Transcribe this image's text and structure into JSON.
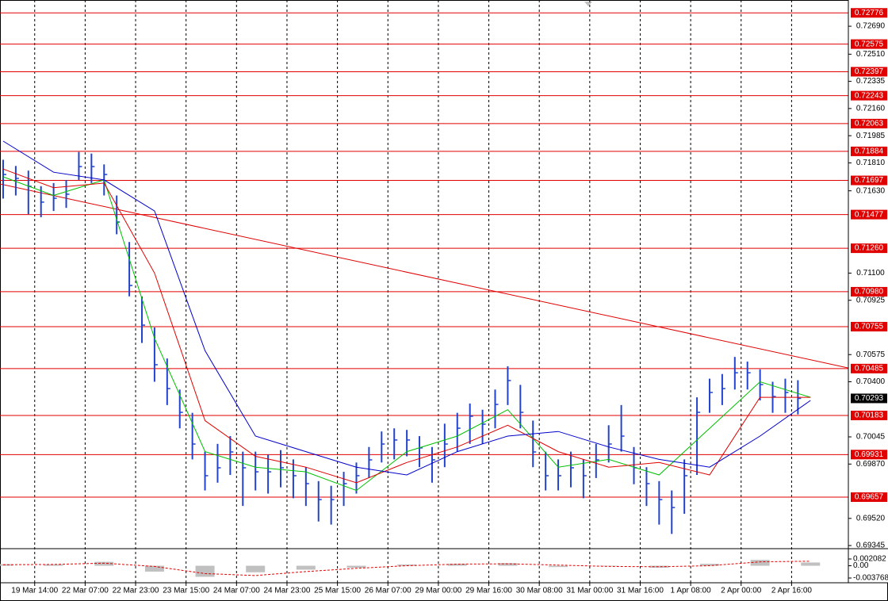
{
  "chart_data": [
    {
      "type": "ohlc",
      "x": [
        0,
        4,
        8,
        12,
        16,
        20,
        24,
        28,
        32,
        36,
        40,
        44,
        48,
        52,
        56,
        60,
        64,
        68,
        72,
        76,
        80,
        84,
        88,
        92,
        96,
        100,
        104,
        108,
        112,
        116,
        120,
        124,
        128,
        132,
        136,
        140,
        144,
        148,
        152,
        156,
        160,
        164,
        168,
        172,
        176,
        180,
        184,
        188,
        192,
        196,
        200,
        204,
        208,
        212,
        216,
        220,
        224,
        228,
        232,
        236,
        240,
        244,
        248,
        252
      ],
      "high": [
        0.7183,
        0.7179,
        0.7176,
        0.7166,
        0.7168,
        0.717,
        0.7188,
        0.7187,
        0.718,
        0.716,
        0.713,
        0.7095,
        0.7075,
        0.7055,
        0.7035,
        0.702,
        0.6995,
        0.7,
        0.7005,
        0.6995,
        0.6995,
        0.6993,
        0.6996,
        0.699,
        0.6985,
        0.6976,
        0.6973,
        0.6982,
        0.6988,
        0.6998,
        0.7008,
        0.701,
        0.7009,
        0.7005,
        0.6998,
        0.7013,
        0.702,
        0.7026,
        0.7022,
        0.7035,
        0.705,
        0.7038,
        0.7015,
        0.6995,
        0.699,
        0.6995,
        0.699,
        0.7,
        0.7012,
        0.7025,
        0.6998,
        0.6985,
        0.6976,
        0.697,
        0.699,
        0.703,
        0.7042,
        0.7045,
        0.7056,
        0.7053,
        0.7048,
        0.704,
        0.7042,
        0.7041
      ],
      "low": [
        0.7158,
        0.716,
        0.7148,
        0.7146,
        0.715,
        0.7152,
        0.717,
        0.7168,
        0.716,
        0.7135,
        0.7095,
        0.7065,
        0.704,
        0.7025,
        0.701,
        0.699,
        0.697,
        0.6975,
        0.698,
        0.696,
        0.697,
        0.6968,
        0.6972,
        0.6965,
        0.696,
        0.695,
        0.6948,
        0.696,
        0.6968,
        0.6978,
        0.6988,
        0.699,
        0.6992,
        0.6985,
        0.6975,
        0.6985,
        0.6995,
        0.7,
        0.7,
        0.701,
        0.7025,
        0.701,
        0.6985,
        0.697,
        0.697,
        0.6972,
        0.6965,
        0.6978,
        0.6988,
        0.6995,
        0.6974,
        0.696,
        0.6948,
        0.6942,
        0.6955,
        0.698,
        0.702,
        0.7025,
        0.7035,
        0.7035,
        0.7028,
        0.702,
        0.702,
        0.7019
      ],
      "close": [
        0.71735,
        0.7171,
        0.71659,
        0.71557,
        0.71582,
        0.71608,
        0.71786,
        0.71786,
        0.71735,
        0.71429,
        0.7102,
        0.70765,
        0.7051,
        0.70356,
        0.70203,
        0.69999,
        0.69795,
        0.69846,
        0.69948,
        0.69846,
        0.6982,
        0.6982,
        0.69846,
        0.69795,
        0.69744,
        0.69641,
        0.69641,
        0.69744,
        0.69795,
        0.69897,
        0.69999,
        0.70025,
        0.70025,
        0.69974,
        0.69897,
        0.69999,
        0.70101,
        0.70178,
        0.70127,
        0.70254,
        0.70408,
        0.70203,
        0.69948,
        0.69795,
        0.69795,
        0.69846,
        0.69795,
        0.69897,
        0.69999,
        0.7005,
        0.69846,
        0.69744,
        0.69641,
        0.6959,
        0.69795,
        0.70203,
        0.70331,
        0.70356,
        0.70458,
        0.70458,
        0.70382,
        0.70305,
        0.70331,
        0.70293
      ],
      "color": "#2244cc",
      "moving_averages": [
        {
          "color": "#00c000",
          "x": [
            0,
            16,
            32,
            48,
            64,
            80,
            96,
            112,
            128,
            144,
            160,
            176,
            192,
            208,
            224,
            240,
            256
          ],
          "values": [
            0.7172,
            0.716,
            0.717,
            0.7068,
            0.6995,
            0.6985,
            0.6982,
            0.697,
            0.6995,
            0.7005,
            0.7022,
            0.6985,
            0.699,
            0.698,
            0.701,
            0.704,
            0.703
          ]
        },
        {
          "color": "#e00000",
          "x": [
            0,
            16,
            32,
            48,
            64,
            80,
            96,
            112,
            128,
            144,
            160,
            176,
            192,
            208,
            224,
            240,
            256
          ],
          "values": [
            0.7177,
            0.7165,
            0.7168,
            0.711,
            0.7015,
            0.6992,
            0.6985,
            0.6975,
            0.6988,
            0.6998,
            0.7012,
            0.6995,
            0.6985,
            0.6988,
            0.698,
            0.703,
            0.703
          ]
        },
        {
          "color": "#0000cc",
          "x": [
            0,
            16,
            32,
            48,
            64,
            80,
            96,
            112,
            128,
            144,
            160,
            176,
            192,
            208,
            224,
            240,
            256
          ],
          "values": [
            0.7195,
            0.7175,
            0.717,
            0.715,
            0.706,
            0.7005,
            0.6995,
            0.6985,
            0.698,
            0.6995,
            0.7005,
            0.7008,
            0.6998,
            0.699,
            0.6985,
            0.7005,
            0.7028
          ]
        }
      ],
      "trendline": {
        "color": "#e00000",
        "x": [
          -1,
          268
        ],
        "values": [
          0.71674,
          0.70489
        ]
      },
      "levels": [
        {
          "value": 0.72776,
          "label": "0.72776"
        },
        {
          "value": 0.72575,
          "label": "0.72575"
        },
        {
          "value": 0.72397,
          "label": "0.72397"
        },
        {
          "value": 0.72243,
          "label": "0.72243"
        },
        {
          "value": 0.72063,
          "label": "0.72063"
        },
        {
          "value": 0.71884,
          "label": "0.71884"
        },
        {
          "value": 0.71697,
          "label": "0.71697"
        },
        {
          "value": 0.71477,
          "label": "0.71477"
        },
        {
          "value": 0.7126,
          "label": "0.71260"
        },
        {
          "value": 0.7098,
          "label": "0.70980"
        },
        {
          "value": 0.70755,
          "label": "0.70755"
        },
        {
          "value": 0.70485,
          "label": "0.70485"
        },
        {
          "value": 0.70183,
          "label": "0.70183"
        },
        {
          "value": 0.69931,
          "label": "0.69931"
        },
        {
          "value": 0.69657,
          "label": "0.69657"
        }
      ],
      "level_color": "#e00000",
      "last_price": {
        "value": 0.70293,
        "label": "0.70293"
      },
      "xlim": [
        -1,
        268
      ],
      "ylim": [
        0.69325,
        0.72859
      ],
      "yticks": [
        {
          "value": 0.7269,
          "label": "0.72690"
        },
        {
          "value": 0.7251,
          "label": "0.72510"
        },
        {
          "value": 0.72335,
          "label": "0.72335"
        },
        {
          "value": 0.7216,
          "label": "0.72160"
        },
        {
          "value": 0.71985,
          "label": "0.71985"
        },
        {
          "value": 0.7181,
          "label": "0.71810"
        },
        {
          "value": 0.7163,
          "label": "0.71630"
        },
        {
          "value": 0.711,
          "label": "0.71100"
        },
        {
          "value": 0.70925,
          "label": "0.70925"
        },
        {
          "value": 0.70575,
          "label": "0.70575"
        },
        {
          "value": 0.704,
          "label": "0.70400"
        },
        {
          "value": 0.70045,
          "label": "0.70045"
        },
        {
          "value": 0.6987,
          "label": "0.69870"
        },
        {
          "value": 0.6952,
          "label": "0.69520"
        },
        {
          "value": 0.69345,
          "label": "0.69345"
        }
      ],
      "xticks": [
        {
          "value": 10,
          "label": "19 Mar 14:00"
        },
        {
          "value": 26,
          "label": "22 Mar 07:00"
        },
        {
          "value": 42,
          "label": "22 Mar 23:00"
        },
        {
          "value": 58,
          "label": "23 Mar 15:00"
        },
        {
          "value": 74,
          "label": "24 Mar 07:00"
        },
        {
          "value": 90,
          "label": "24 Mar 23:00"
        },
        {
          "value": 106,
          "label": "25 Mar 15:00"
        },
        {
          "value": 122,
          "label": "26 Mar 07:00"
        },
        {
          "value": 138,
          "label": "29 Mar 00:00"
        },
        {
          "value": 154,
          "label": "29 Mar 16:00"
        },
        {
          "value": 170,
          "label": "30 Mar 08:00"
        },
        {
          "value": 186,
          "label": "31 Mar 00:00"
        },
        {
          "value": 202,
          "label": "31 Mar 16:00"
        },
        {
          "value": 218,
          "label": "1 Apr 08:00"
        },
        {
          "value": 234,
          "label": "2 Apr 00:00"
        },
        {
          "value": 250,
          "label": "2 Apr 16:00"
        }
      ],
      "grid": true
    },
    {
      "type": "oscillator",
      "x": [
        0,
        16,
        32,
        48,
        64,
        80,
        96,
        112,
        128,
        144,
        160,
        176,
        192,
        208,
        224,
        240,
        256
      ],
      "values": [
        0.0005,
        0.0004,
        0.0012,
        -0.0018,
        -0.0034,
        -0.002,
        -0.0012,
        -0.0006,
        0.0004,
        0.0006,
        0.0008,
        -0.0004,
        0.0,
        -0.0006,
        0.0006,
        0.0018,
        0.001
      ],
      "color": "#c0c0c0",
      "signal": {
        "color": "#e00000",
        "values": [
          0.0003,
          0.0004,
          0.0008,
          -0.0002,
          -0.0024,
          -0.003,
          -0.0018,
          -0.0008,
          0.0,
          0.0005,
          0.0006,
          0.0002,
          -0.0002,
          -0.0003,
          0.0,
          0.0012,
          0.0014
        ]
      },
      "ylim": [
        -0.00523,
        0.00525
      ],
      "yticks": [
        0.002082,
        {
          "value": 0,
          "label": "0.00"
        },
        -0.003768
      ]
    }
  ]
}
